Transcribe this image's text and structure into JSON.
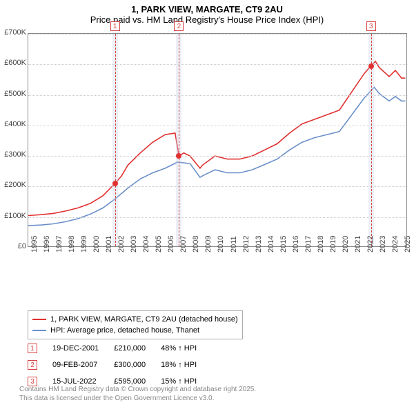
{
  "title_line1": "1, PARK VIEW, MARGATE, CT9 2AU",
  "title_line2": "Price paid vs. HM Land Registry's House Price Index (HPI)",
  "chart": {
    "type": "line",
    "background_color": "#ffffff",
    "grid_color": "#cccccc",
    "axis_color": "#888888",
    "ylim": [
      0,
      700000
    ],
    "ytick_step": 100000,
    "yticks": [
      "£0",
      "£100K",
      "£200K",
      "£300K",
      "£400K",
      "£500K",
      "£600K",
      "£700K"
    ],
    "xlim": [
      1995,
      2025.5
    ],
    "xticks": [
      1995,
      1996,
      1997,
      1998,
      1999,
      2000,
      2001,
      2002,
      2003,
      2004,
      2005,
      2006,
      2007,
      2008,
      2009,
      2010,
      2011,
      2012,
      2013,
      2014,
      2015,
      2016,
      2017,
      2018,
      2019,
      2020,
      2021,
      2022,
      2023,
      2024,
      2025
    ],
    "label_fontsize": 11,
    "line_width": 1.6,
    "series": [
      {
        "name": "price_paid",
        "label": "1, PARK VIEW, MARGATE, CT9 2AU (detached house)",
        "color": "#e03030",
        "data": [
          [
            1995,
            105000
          ],
          [
            1996,
            108000
          ],
          [
            1997,
            112000
          ],
          [
            1998,
            120000
          ],
          [
            1999,
            130000
          ],
          [
            2000,
            145000
          ],
          [
            2001,
            170000
          ],
          [
            2001.97,
            210000
          ],
          [
            2002.5,
            235000
          ],
          [
            2003,
            270000
          ],
          [
            2004,
            310000
          ],
          [
            2005,
            345000
          ],
          [
            2006,
            370000
          ],
          [
            2006.8,
            375000
          ],
          [
            2007.11,
            300000
          ],
          [
            2007.5,
            310000
          ],
          [
            2008,
            300000
          ],
          [
            2008.8,
            260000
          ],
          [
            2009,
            270000
          ],
          [
            2010,
            300000
          ],
          [
            2011,
            290000
          ],
          [
            2012,
            290000
          ],
          [
            2013,
            300000
          ],
          [
            2014,
            320000
          ],
          [
            2015,
            340000
          ],
          [
            2016,
            375000
          ],
          [
            2017,
            405000
          ],
          [
            2018,
            420000
          ],
          [
            2019,
            435000
          ],
          [
            2020,
            450000
          ],
          [
            2021,
            510000
          ],
          [
            2022,
            570000
          ],
          [
            2022.54,
            595000
          ],
          [
            2022.9,
            610000
          ],
          [
            2023.2,
            590000
          ],
          [
            2024,
            560000
          ],
          [
            2024.5,
            580000
          ],
          [
            2025,
            555000
          ],
          [
            2025.3,
            555000
          ]
        ]
      },
      {
        "name": "hpi",
        "label": "HPI: Average price, detached house, Thanet",
        "color": "#6b8fc9",
        "data": [
          [
            1995,
            72000
          ],
          [
            1996,
            74000
          ],
          [
            1997,
            78000
          ],
          [
            1998,
            85000
          ],
          [
            1999,
            95000
          ],
          [
            2000,
            110000
          ],
          [
            2001,
            130000
          ],
          [
            2002,
            160000
          ],
          [
            2003,
            195000
          ],
          [
            2004,
            225000
          ],
          [
            2005,
            245000
          ],
          [
            2006,
            260000
          ],
          [
            2007,
            280000
          ],
          [
            2008,
            275000
          ],
          [
            2008.8,
            230000
          ],
          [
            2009,
            235000
          ],
          [
            2010,
            255000
          ],
          [
            2011,
            245000
          ],
          [
            2012,
            245000
          ],
          [
            2013,
            255000
          ],
          [
            2014,
            272000
          ],
          [
            2015,
            290000
          ],
          [
            2016,
            320000
          ],
          [
            2017,
            345000
          ],
          [
            2018,
            360000
          ],
          [
            2019,
            370000
          ],
          [
            2020,
            380000
          ],
          [
            2021,
            435000
          ],
          [
            2022,
            490000
          ],
          [
            2022.8,
            525000
          ],
          [
            2023.2,
            505000
          ],
          [
            2024,
            480000
          ],
          [
            2024.5,
            495000
          ],
          [
            2025,
            480000
          ],
          [
            2025.3,
            480000
          ]
        ]
      }
    ],
    "sale_markers": [
      {
        "num": "1",
        "year": 2001.97,
        "value": 210000,
        "band_color": "rgba(200,210,230,0.35)",
        "line_color": "#d94040"
      },
      {
        "num": "2",
        "year": 2007.11,
        "value": 300000,
        "band_color": "rgba(200,210,230,0.35)",
        "line_color": "#d94040"
      },
      {
        "num": "3",
        "year": 2022.54,
        "value": 595000,
        "band_color": "rgba(200,210,230,0.35)",
        "line_color": "#d94040"
      }
    ],
    "marker_dot_color": "#e03030"
  },
  "sales": [
    {
      "num": "1",
      "date": "19-DEC-2001",
      "price": "£210,000",
      "delta": "48% ↑ HPI"
    },
    {
      "num": "2",
      "date": "09-FEB-2007",
      "price": "£300,000",
      "delta": "18% ↑ HPI"
    },
    {
      "num": "3",
      "date": "15-JUL-2022",
      "price": "£595,000",
      "delta": "15% ↑ HPI"
    }
  ],
  "footer_line1": "Contains HM Land Registry data © Crown copyright and database right 2025.",
  "footer_line2": "This data is licensed under the Open Government Licence v3.0."
}
